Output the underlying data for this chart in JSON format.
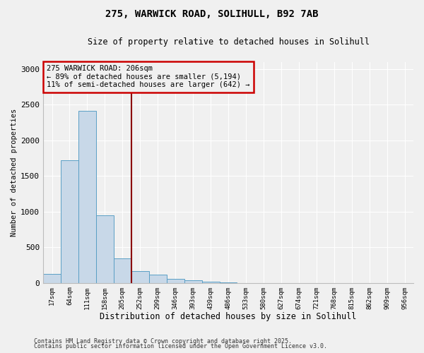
{
  "title_line1": "275, WARWICK ROAD, SOLIHULL, B92 7AB",
  "title_line2": "Size of property relative to detached houses in Solihull",
  "xlabel": "Distribution of detached houses by size in Solihull",
  "ylabel": "Number of detached properties",
  "bins": [
    "17sqm",
    "64sqm",
    "111sqm",
    "158sqm",
    "205sqm",
    "252sqm",
    "299sqm",
    "346sqm",
    "393sqm",
    "439sqm",
    "486sqm",
    "533sqm",
    "580sqm",
    "627sqm",
    "674sqm",
    "721sqm",
    "768sqm",
    "815sqm",
    "862sqm",
    "909sqm",
    "956sqm"
  ],
  "values": [
    130,
    1720,
    2410,
    950,
    340,
    170,
    115,
    55,
    35,
    20,
    10,
    0,
    0,
    0,
    0,
    0,
    0,
    0,
    0,
    0,
    0
  ],
  "bar_color": "#c8d8e8",
  "bar_edge_color": "#5a9fc5",
  "vline_color": "#8b0000",
  "vline_xindex": 4.5,
  "annotation_text": "275 WARWICK ROAD: 206sqm\n← 89% of detached houses are smaller (5,194)\n11% of semi-detached houses are larger (642) →",
  "annotation_box_color": "#cc0000",
  "ylim": [
    0,
    3100
  ],
  "yticks": [
    0,
    500,
    1000,
    1500,
    2000,
    2500,
    3000
  ],
  "footnote1": "Contains HM Land Registry data © Crown copyright and database right 2025.",
  "footnote2": "Contains public sector information licensed under the Open Government Licence v3.0.",
  "background_color": "#f0f0f0",
  "grid_color": "#ffffff"
}
